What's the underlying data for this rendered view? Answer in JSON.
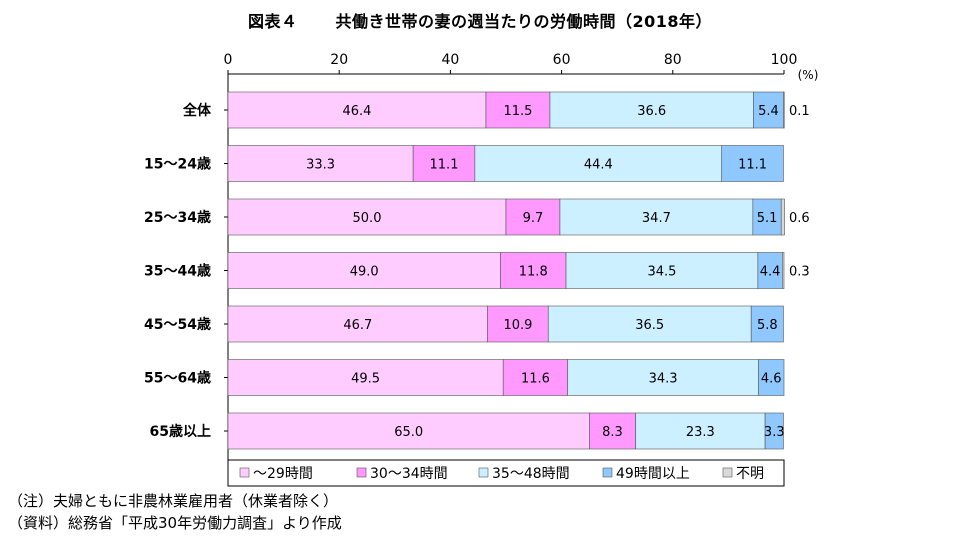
{
  "title_label": "図表４",
  "title": "共働き世帯の妻の週当たりの労働時間（2018年）",
  "chart_data": {
    "type": "bar",
    "orientation": "horizontal",
    "stacked": true,
    "title": "共働き世帯の妻の週当たりの労働時間（2018年）",
    "xlim": [
      0,
      100
    ],
    "xticks": [
      "0",
      "20",
      "40",
      "60",
      "80",
      "100"
    ],
    "unit": "(%)",
    "categories": [
      "全体",
      "15～24歳",
      "25～34歳",
      "35～44歳",
      "45～54歳",
      "55～64歳",
      "65歳以上"
    ],
    "series": [
      {
        "name": "～29時間",
        "color": "#ffccff",
        "values": [
          46.4,
          33.3,
          50.0,
          49.0,
          46.7,
          49.5,
          65.0
        ],
        "labels": [
          "46.4",
          "33.3",
          "50.0",
          "49.0",
          "46.7",
          "49.5",
          "65.0"
        ]
      },
      {
        "name": "30～34時間",
        "color": "#ff99ff",
        "values": [
          11.5,
          11.1,
          9.7,
          11.8,
          10.9,
          11.6,
          8.3
        ],
        "labels": [
          "11.5",
          "11.1",
          "9.7",
          "11.8",
          "10.9",
          "11.6",
          "8.3"
        ]
      },
      {
        "name": "35～48時間",
        "color": "#ccf0ff",
        "values": [
          36.6,
          44.4,
          34.7,
          34.5,
          36.5,
          34.3,
          23.3
        ],
        "labels": [
          "36.6",
          "44.4",
          "34.7",
          "34.5",
          "36.5",
          "34.3",
          "23.3"
        ]
      },
      {
        "name": "49時間以上",
        "color": "#8ec8ff",
        "values": [
          5.4,
          11.1,
          5.1,
          4.4,
          5.8,
          4.6,
          3.3
        ],
        "labels": [
          "5.4",
          "11.1",
          "5.1",
          "4.4",
          "5.8",
          "4.6",
          "3.3"
        ]
      },
      {
        "name": "不明",
        "color": "#d9d9d9",
        "values": [
          0.1,
          0,
          0.6,
          0.3,
          0,
          0,
          0
        ],
        "labels": [
          "0.1",
          "",
          "0.6",
          "0.3",
          "",
          "",
          ""
        ]
      }
    ]
  },
  "notes": [
    "（注）夫婦ともに非農林業雇用者（休業者除く）",
    "（資料）総務省「平成30年労働力調査」より作成"
  ]
}
